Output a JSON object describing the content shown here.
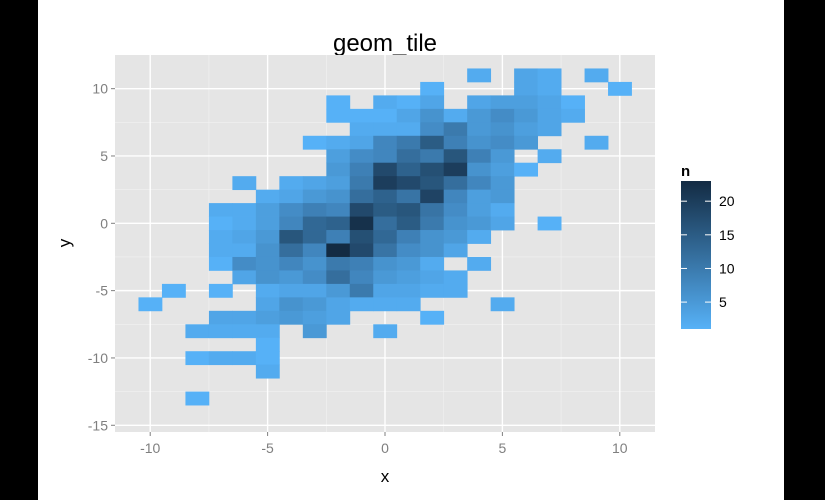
{
  "chart_data": {
    "type": "heatmap",
    "title": "geom_tile",
    "xlabel": "x",
    "ylabel": "y",
    "xlim": [
      -11.5,
      11.5
    ],
    "ylim": [
      -15.5,
      12.5
    ],
    "xticks": [
      -10,
      -5,
      0,
      5,
      10
    ],
    "yticks": [
      -15,
      -10,
      -5,
      0,
      5,
      10
    ],
    "tile_width": 1,
    "tile_height": 1,
    "grid": true,
    "legend": {
      "title": "n",
      "position": "right",
      "breaks": [
        5,
        10,
        15,
        20
      ],
      "range": [
        1,
        23
      ],
      "color_low": "#56B1F7",
      "color_high": "#132B43"
    },
    "tiles": [
      [
        4,
        11,
        2
      ],
      [
        6,
        11,
        3
      ],
      [
        7,
        11,
        2
      ],
      [
        9,
        11,
        2
      ],
      [
        2,
        10,
        1
      ],
      [
        6,
        10,
        3
      ],
      [
        7,
        10,
        2
      ],
      [
        10,
        10,
        1
      ],
      [
        -2,
        9,
        1
      ],
      [
        0,
        9,
        2
      ],
      [
        1,
        9,
        1
      ],
      [
        2,
        9,
        3
      ],
      [
        4,
        9,
        3
      ],
      [
        5,
        9,
        4
      ],
      [
        6,
        9,
        4
      ],
      [
        7,
        9,
        3
      ],
      [
        8,
        9,
        1
      ],
      [
        -2,
        8,
        1
      ],
      [
        -1,
        8,
        1
      ],
      [
        0,
        8,
        1
      ],
      [
        1,
        8,
        3
      ],
      [
        2,
        8,
        6
      ],
      [
        3,
        8,
        2
      ],
      [
        4,
        8,
        5
      ],
      [
        5,
        8,
        7
      ],
      [
        6,
        8,
        5
      ],
      [
        7,
        8,
        3
      ],
      [
        8,
        8,
        2
      ],
      [
        -1,
        7,
        2
      ],
      [
        0,
        7,
        2
      ],
      [
        1,
        7,
        2
      ],
      [
        2,
        7,
        7
      ],
      [
        3,
        7,
        10
      ],
      [
        4,
        7,
        5
      ],
      [
        5,
        7,
        6
      ],
      [
        6,
        7,
        4
      ],
      [
        7,
        7,
        3
      ],
      [
        -3,
        6,
        1
      ],
      [
        -2,
        6,
        2
      ],
      [
        -1,
        6,
        3
      ],
      [
        0,
        6,
        8
      ],
      [
        1,
        6,
        10
      ],
      [
        2,
        6,
        15
      ],
      [
        3,
        6,
        9
      ],
      [
        4,
        6,
        6
      ],
      [
        5,
        6,
        7
      ],
      [
        6,
        6,
        5
      ],
      [
        9,
        6,
        2
      ],
      [
        -2,
        5,
        4
      ],
      [
        -1,
        5,
        7
      ],
      [
        0,
        5,
        8
      ],
      [
        1,
        5,
        12
      ],
      [
        2,
        5,
        10
      ],
      [
        3,
        5,
        16
      ],
      [
        4,
        5,
        9
      ],
      [
        5,
        5,
        5
      ],
      [
        7,
        5,
        2
      ],
      [
        -2,
        4,
        5
      ],
      [
        -1,
        4,
        9
      ],
      [
        0,
        4,
        18
      ],
      [
        1,
        4,
        14
      ],
      [
        2,
        4,
        17
      ],
      [
        3,
        4,
        20
      ],
      [
        4,
        4,
        6
      ],
      [
        5,
        4,
        4
      ],
      [
        6,
        4,
        1
      ],
      [
        -6,
        3,
        2
      ],
      [
        -4,
        3,
        2
      ],
      [
        -3,
        3,
        3
      ],
      [
        -2,
        3,
        4
      ],
      [
        -1,
        3,
        10
      ],
      [
        0,
        3,
        20
      ],
      [
        1,
        3,
        18
      ],
      [
        2,
        3,
        16
      ],
      [
        3,
        3,
        12
      ],
      [
        4,
        3,
        8
      ],
      [
        5,
        3,
        5
      ],
      [
        -5,
        2,
        2
      ],
      [
        -4,
        2,
        3
      ],
      [
        -3,
        2,
        5
      ],
      [
        -2,
        2,
        6
      ],
      [
        -1,
        2,
        12
      ],
      [
        0,
        2,
        14
      ],
      [
        1,
        2,
        11
      ],
      [
        2,
        2,
        19
      ],
      [
        3,
        2,
        8
      ],
      [
        4,
        2,
        4
      ],
      [
        5,
        2,
        5
      ],
      [
        -7,
        1,
        2
      ],
      [
        -6,
        1,
        2
      ],
      [
        -5,
        1,
        4
      ],
      [
        -4,
        1,
        7
      ],
      [
        -3,
        1,
        9
      ],
      [
        -2,
        1,
        8
      ],
      [
        -1,
        1,
        18
      ],
      [
        0,
        1,
        15
      ],
      [
        1,
        1,
        16
      ],
      [
        2,
        1,
        11
      ],
      [
        3,
        1,
        7
      ],
      [
        4,
        1,
        4
      ],
      [
        5,
        1,
        2
      ],
      [
        -7,
        0,
        1
      ],
      [
        -6,
        0,
        2
      ],
      [
        -5,
        0,
        4
      ],
      [
        -4,
        0,
        8
      ],
      [
        -3,
        0,
        13
      ],
      [
        -2,
        0,
        14
      ],
      [
        -1,
        0,
        22
      ],
      [
        0,
        0,
        12
      ],
      [
        1,
        0,
        15
      ],
      [
        2,
        0,
        10
      ],
      [
        3,
        0,
        6
      ],
      [
        4,
        0,
        5
      ],
      [
        5,
        0,
        3
      ],
      [
        7,
        0,
        1
      ],
      [
        -7,
        -1,
        2
      ],
      [
        -6,
        -1,
        3
      ],
      [
        -5,
        -1,
        5
      ],
      [
        -4,
        -1,
        16
      ],
      [
        -3,
        -1,
        13
      ],
      [
        -2,
        -1,
        9
      ],
      [
        -1,
        -1,
        17
      ],
      [
        0,
        -1,
        13
      ],
      [
        1,
        -1,
        9
      ],
      [
        2,
        -1,
        6
      ],
      [
        3,
        -1,
        5
      ],
      [
        4,
        -1,
        2
      ],
      [
        -7,
        -2,
        2
      ],
      [
        -6,
        -2,
        2
      ],
      [
        -5,
        -2,
        6
      ],
      [
        -4,
        -2,
        12
      ],
      [
        -3,
        -2,
        8
      ],
      [
        -2,
        -2,
        23
      ],
      [
        -1,
        -2,
        18
      ],
      [
        0,
        -2,
        11
      ],
      [
        1,
        -2,
        7
      ],
      [
        2,
        -2,
        6
      ],
      [
        3,
        -2,
        3
      ],
      [
        -7,
        -3,
        1
      ],
      [
        -6,
        -3,
        7
      ],
      [
        -5,
        -3,
        6
      ],
      [
        -4,
        -3,
        8
      ],
      [
        -3,
        -3,
        6
      ],
      [
        -2,
        -3,
        10
      ],
      [
        -1,
        -3,
        9
      ],
      [
        0,
        -3,
        6
      ],
      [
        1,
        -3,
        5
      ],
      [
        2,
        -3,
        2
      ],
      [
        4,
        -3,
        2
      ],
      [
        -6,
        -4,
        3
      ],
      [
        -5,
        -4,
        6
      ],
      [
        -4,
        -4,
        5
      ],
      [
        -3,
        -4,
        7
      ],
      [
        -2,
        -4,
        12
      ],
      [
        -1,
        -4,
        8
      ],
      [
        0,
        -4,
        5
      ],
      [
        1,
        -4,
        4
      ],
      [
        2,
        -4,
        3
      ],
      [
        3,
        -4,
        2
      ],
      [
        -9,
        -5,
        1
      ],
      [
        -7,
        -5,
        1
      ],
      [
        -5,
        -5,
        2
      ],
      [
        -4,
        -5,
        3
      ],
      [
        -3,
        -5,
        3
      ],
      [
        -2,
        -5,
        5
      ],
      [
        -1,
        -5,
        10
      ],
      [
        0,
        -5,
        3
      ],
      [
        1,
        -5,
        3
      ],
      [
        2,
        -5,
        2
      ],
      [
        3,
        -5,
        2
      ],
      [
        -10,
        -6,
        1
      ],
      [
        -5,
        -6,
        3
      ],
      [
        -4,
        -6,
        6
      ],
      [
        -3,
        -6,
        5
      ],
      [
        -2,
        -6,
        3
      ],
      [
        -1,
        -6,
        2
      ],
      [
        0,
        -6,
        2
      ],
      [
        1,
        -6,
        2
      ],
      [
        5,
        -6,
        2
      ],
      [
        -7,
        -7,
        3
      ],
      [
        -6,
        -7,
        3
      ],
      [
        -5,
        -7,
        4
      ],
      [
        -4,
        -7,
        5
      ],
      [
        -3,
        -7,
        4
      ],
      [
        -2,
        -7,
        3
      ],
      [
        2,
        -7,
        1
      ],
      [
        -8,
        -8,
        2
      ],
      [
        -7,
        -8,
        2
      ],
      [
        -6,
        -8,
        2
      ],
      [
        -5,
        -8,
        2
      ],
      [
        -3,
        -8,
        5
      ],
      [
        0,
        -8,
        2
      ],
      [
        -5,
        -9,
        1
      ],
      [
        -8,
        -10,
        1
      ],
      [
        -7,
        -10,
        2
      ],
      [
        -6,
        -10,
        2
      ],
      [
        -5,
        -10,
        1
      ],
      [
        -5,
        -11,
        2
      ],
      [
        -8,
        -13,
        1
      ]
    ]
  }
}
